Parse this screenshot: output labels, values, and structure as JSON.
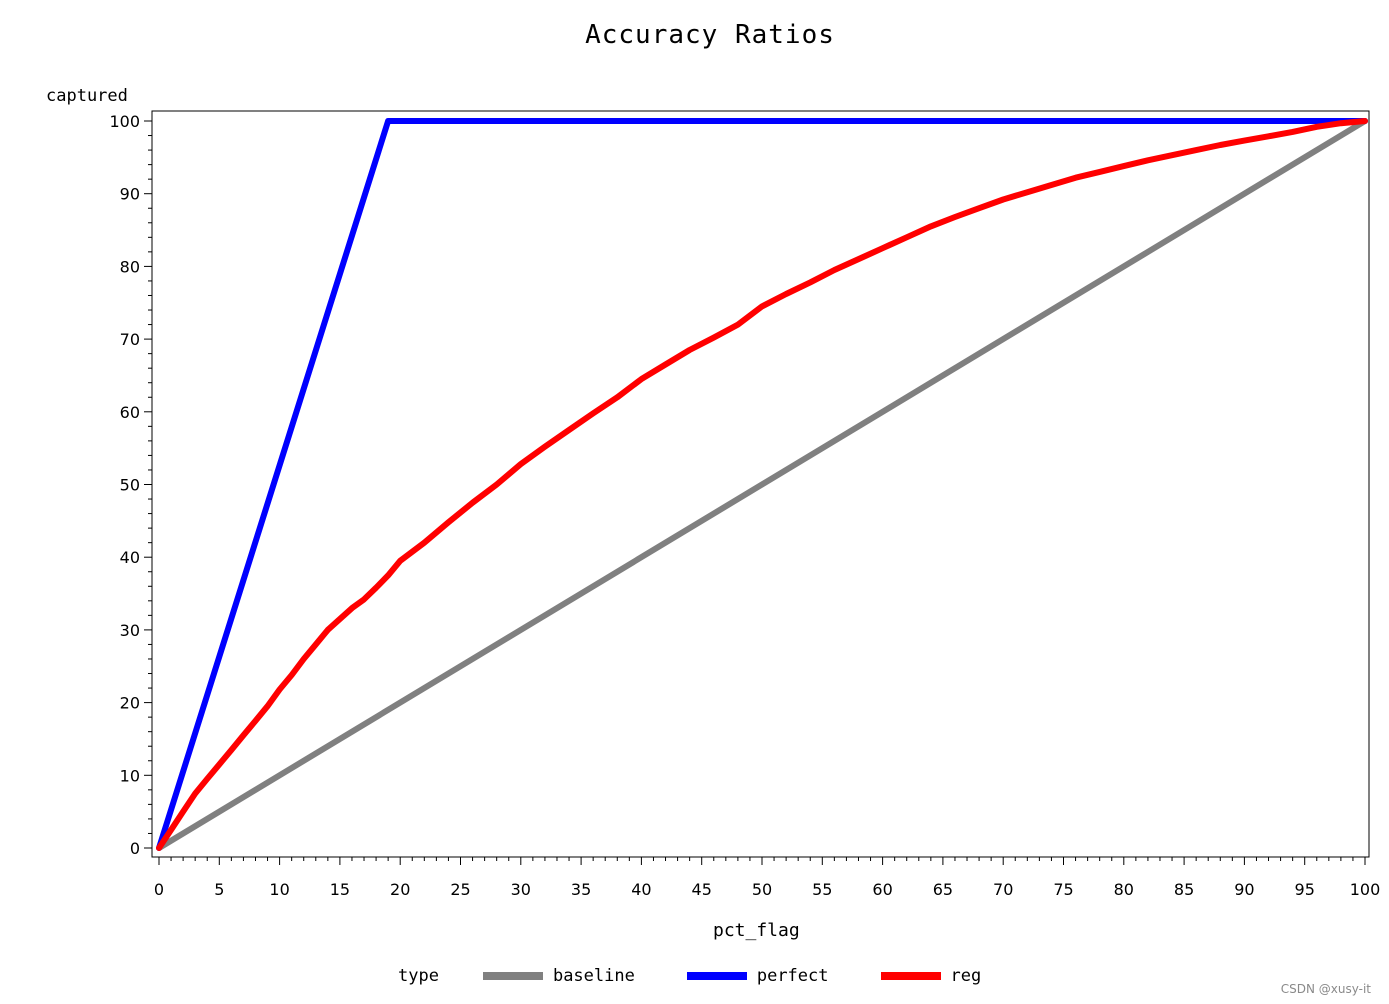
{
  "chart_data": {
    "type": "line",
    "title": "Accuracy Ratios",
    "xlabel": "pct_flag",
    "ylabel": "captured",
    "xlim": [
      0,
      100
    ],
    "ylim": [
      0,
      100
    ],
    "x_ticks": [
      0,
      5,
      10,
      15,
      20,
      25,
      30,
      35,
      40,
      45,
      50,
      55,
      60,
      65,
      70,
      75,
      80,
      85,
      90,
      95,
      100
    ],
    "y_ticks": [
      0,
      10,
      20,
      30,
      40,
      50,
      60,
      70,
      80,
      90,
      100
    ],
    "grid": false,
    "legend": {
      "title": "type",
      "position": "bottom"
    },
    "series": [
      {
        "name": "baseline",
        "color": "#808080",
        "points": [
          [
            0,
            0
          ],
          [
            100,
            100
          ]
        ]
      },
      {
        "name": "perfect",
        "color": "#0000ff",
        "points": [
          [
            0,
            0
          ],
          [
            19,
            100
          ],
          [
            100,
            100
          ]
        ]
      },
      {
        "name": "reg",
        "color": "#ff0000",
        "points": [
          [
            0,
            0
          ],
          [
            1,
            2.5
          ],
          [
            2,
            5
          ],
          [
            3,
            7.5
          ],
          [
            4,
            9.5
          ],
          [
            5,
            11.5
          ],
          [
            6,
            13.5
          ],
          [
            7,
            15.5
          ],
          [
            8,
            17.5
          ],
          [
            9,
            19.5
          ],
          [
            10,
            21.8
          ],
          [
            11,
            23.8
          ],
          [
            12,
            26
          ],
          [
            13,
            28
          ],
          [
            14,
            30
          ],
          [
            15,
            31.5
          ],
          [
            16,
            33
          ],
          [
            17,
            34.2
          ],
          [
            18,
            35.8
          ],
          [
            19,
            37.5
          ],
          [
            20,
            39.5
          ],
          [
            22,
            42
          ],
          [
            24,
            44.8
          ],
          [
            26,
            47.5
          ],
          [
            28,
            50
          ],
          [
            30,
            52.8
          ],
          [
            32,
            55.2
          ],
          [
            34,
            57.5
          ],
          [
            36,
            59.8
          ],
          [
            38,
            62
          ],
          [
            40,
            64.5
          ],
          [
            42,
            66.5
          ],
          [
            44,
            68.5
          ],
          [
            46,
            70.2
          ],
          [
            48,
            72
          ],
          [
            50,
            74.5
          ],
          [
            52,
            76.2
          ],
          [
            54,
            77.8
          ],
          [
            56,
            79.5
          ],
          [
            58,
            81
          ],
          [
            60,
            82.5
          ],
          [
            62,
            84
          ],
          [
            64,
            85.5
          ],
          [
            66,
            86.8
          ],
          [
            68,
            88
          ],
          [
            70,
            89.2
          ],
          [
            72,
            90.2
          ],
          [
            74,
            91.2
          ],
          [
            76,
            92.2
          ],
          [
            78,
            93
          ],
          [
            80,
            93.8
          ],
          [
            82,
            94.6
          ],
          [
            84,
            95.3
          ],
          [
            86,
            96
          ],
          [
            88,
            96.7
          ],
          [
            90,
            97.3
          ],
          [
            92,
            97.9
          ],
          [
            94,
            98.5
          ],
          [
            96,
            99.2
          ],
          [
            98,
            99.7
          ],
          [
            100,
            100
          ]
        ]
      }
    ]
  },
  "watermark": "CSDN @xusy-it"
}
